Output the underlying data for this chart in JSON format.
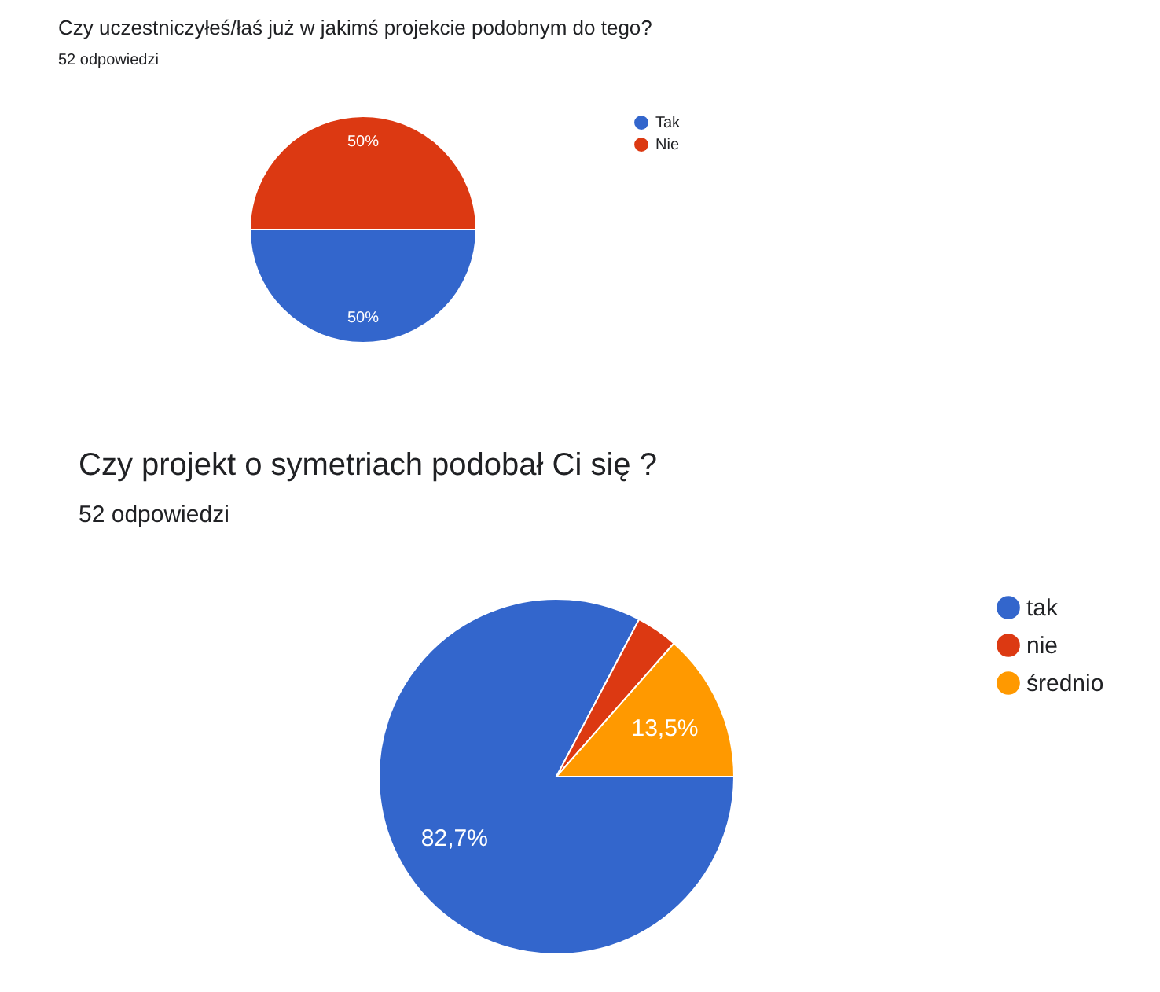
{
  "chart_data": [
    {
      "type": "pie",
      "title": "Czy uczestniczyłeś/łaś już w jakimś projekcie podobnym do tego?",
      "subtitle": "52 odpowiedzi",
      "categories": [
        "Tak",
        "Nie"
      ],
      "values": [
        50,
        50
      ],
      "colors": [
        "#3366cc",
        "#dc3912"
      ],
      "value_labels": [
        "50%",
        "50%"
      ],
      "legend": "top right"
    },
    {
      "type": "pie",
      "title": "Czy projekt o symetriach podobał Ci się ?",
      "subtitle": "52 odpowiedzi",
      "categories": [
        "tak",
        "nie",
        "średnio"
      ],
      "values": [
        82.7,
        3.8,
        13.5
      ],
      "colors": [
        "#3366cc",
        "#dc3912",
        "#ff9900"
      ],
      "value_labels": [
        "82,7%",
        null,
        "13,5%"
      ],
      "legend": "top right"
    }
  ]
}
